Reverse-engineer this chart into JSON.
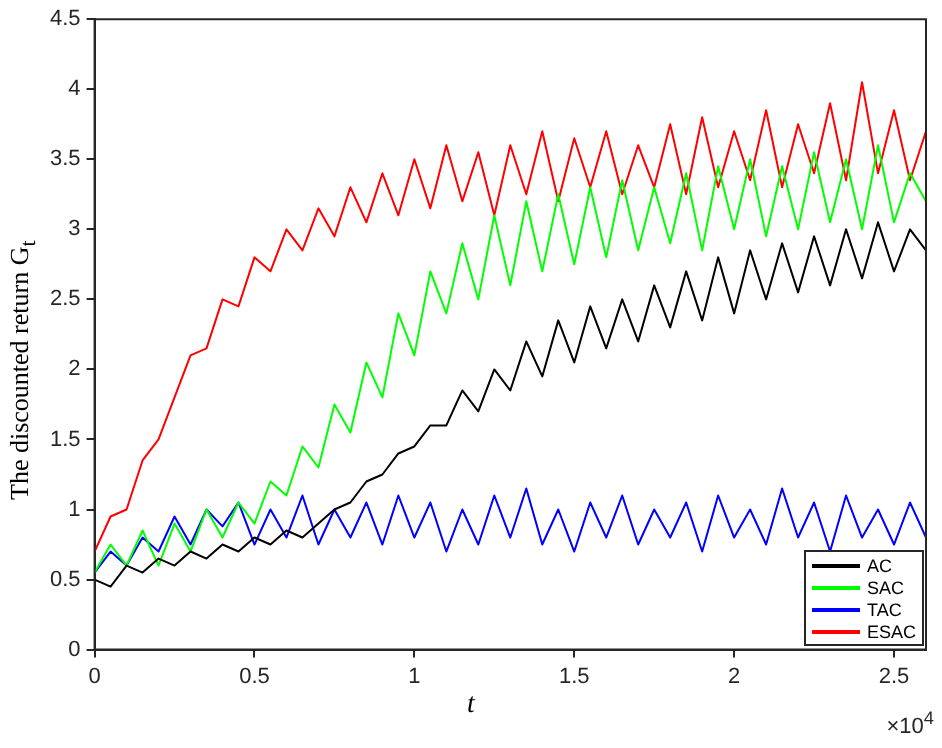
{
  "chart_data": {
    "type": "line",
    "xlabel": "t",
    "ylabel": "The discounted return G$_{t}$",
    "annotations": [
      "×10$^{4}$"
    ],
    "x": [
      0,
      0.05,
      0.1,
      0.15,
      0.2,
      0.25,
      0.3,
      0.35,
      0.4,
      0.45,
      0.5,
      0.55,
      0.6,
      0.65,
      0.7,
      0.75,
      0.8,
      0.85,
      0.9,
      0.95,
      1,
      1.05,
      1.1,
      1.15,
      1.2,
      1.25,
      1.3,
      1.35,
      1.4,
      1.45,
      1.5,
      1.55,
      1.6,
      1.65,
      1.7,
      1.75,
      1.8,
      1.85,
      1.9,
      1.95,
      2,
      2.05,
      2.1,
      2.15,
      2.2,
      2.25,
      2.3,
      2.35,
      2.4,
      2.45,
      2.5,
      2.55,
      2.6
    ],
    "series": [
      {
        "name": "AC",
        "color": "#000000",
        "values": [
          0.5,
          0.45,
          0.6,
          0.55,
          0.65,
          0.6,
          0.7,
          0.65,
          0.75,
          0.7,
          0.8,
          0.75,
          0.85,
          0.8,
          0.9,
          1.0,
          1.05,
          1.2,
          1.25,
          1.4,
          1.45,
          1.6,
          1.6,
          1.85,
          1.7,
          2.0,
          1.85,
          2.2,
          1.95,
          2.35,
          2.05,
          2.45,
          2.15,
          2.5,
          2.2,
          2.6,
          2.3,
          2.7,
          2.35,
          2.8,
          2.4,
          2.85,
          2.5,
          2.9,
          2.55,
          2.95,
          2.6,
          3.0,
          2.65,
          3.05,
          2.7,
          3.0,
          2.85
        ]
      },
      {
        "name": "SAC",
        "color": "#00ff00",
        "values": [
          0.55,
          0.75,
          0.6,
          0.85,
          0.6,
          0.9,
          0.7,
          1.0,
          0.8,
          1.05,
          0.9,
          1.2,
          1.1,
          1.45,
          1.3,
          1.75,
          1.55,
          2.05,
          1.8,
          2.4,
          2.1,
          2.7,
          2.4,
          2.9,
          2.5,
          3.1,
          2.6,
          3.2,
          2.7,
          3.25,
          2.75,
          3.3,
          2.8,
          3.35,
          2.85,
          3.3,
          2.9,
          3.4,
          2.85,
          3.45,
          3.0,
          3.5,
          2.95,
          3.45,
          3.0,
          3.55,
          3.05,
          3.5,
          3.0,
          3.6,
          3.05,
          3.4,
          3.2
        ]
      },
      {
        "name": "TAC",
        "color": "#0000ff",
        "values": [
          0.55,
          0.7,
          0.6,
          0.8,
          0.7,
          0.95,
          0.75,
          1.0,
          0.88,
          1.05,
          0.75,
          1.0,
          0.8,
          1.1,
          0.75,
          1.0,
          0.8,
          1.05,
          0.75,
          1.1,
          0.8,
          1.05,
          0.7,
          1.0,
          0.75,
          1.1,
          0.8,
          1.15,
          0.75,
          1.0,
          0.7,
          1.05,
          0.8,
          1.1,
          0.75,
          1.0,
          0.8,
          1.05,
          0.7,
          1.1,
          0.8,
          1.0,
          0.75,
          1.15,
          0.8,
          1.05,
          0.7,
          1.1,
          0.8,
          1.0,
          0.75,
          1.05,
          0.8
        ]
      },
      {
        "name": "ESAC",
        "color": "#ff0000",
        "values": [
          0.7,
          0.95,
          1.0,
          1.35,
          1.5,
          1.8,
          2.1,
          2.15,
          2.5,
          2.45,
          2.8,
          2.7,
          3.0,
          2.85,
          3.15,
          2.95,
          3.3,
          3.05,
          3.4,
          3.1,
          3.5,
          3.15,
          3.6,
          3.2,
          3.55,
          3.1,
          3.6,
          3.25,
          3.7,
          3.2,
          3.65,
          3.3,
          3.7,
          3.25,
          3.6,
          3.3,
          3.75,
          3.25,
          3.8,
          3.3,
          3.7,
          3.35,
          3.85,
          3.3,
          3.75,
          3.4,
          3.9,
          3.35,
          4.05,
          3.4,
          3.85,
          3.35,
          3.7
        ]
      }
    ],
    "xlim": [
      0,
      2.6
    ],
    "xticks": [
      0,
      0.5,
      1,
      1.5,
      2,
      2.5
    ],
    "ylim": [
      0,
      4.5
    ],
    "yticks": [
      0,
      0.5,
      1,
      1.5,
      2,
      2.5,
      3,
      3.5,
      4,
      4.5
    ],
    "grid": false,
    "legend": "bottom right",
    "marker": "none",
    "line_style": "solid"
  }
}
